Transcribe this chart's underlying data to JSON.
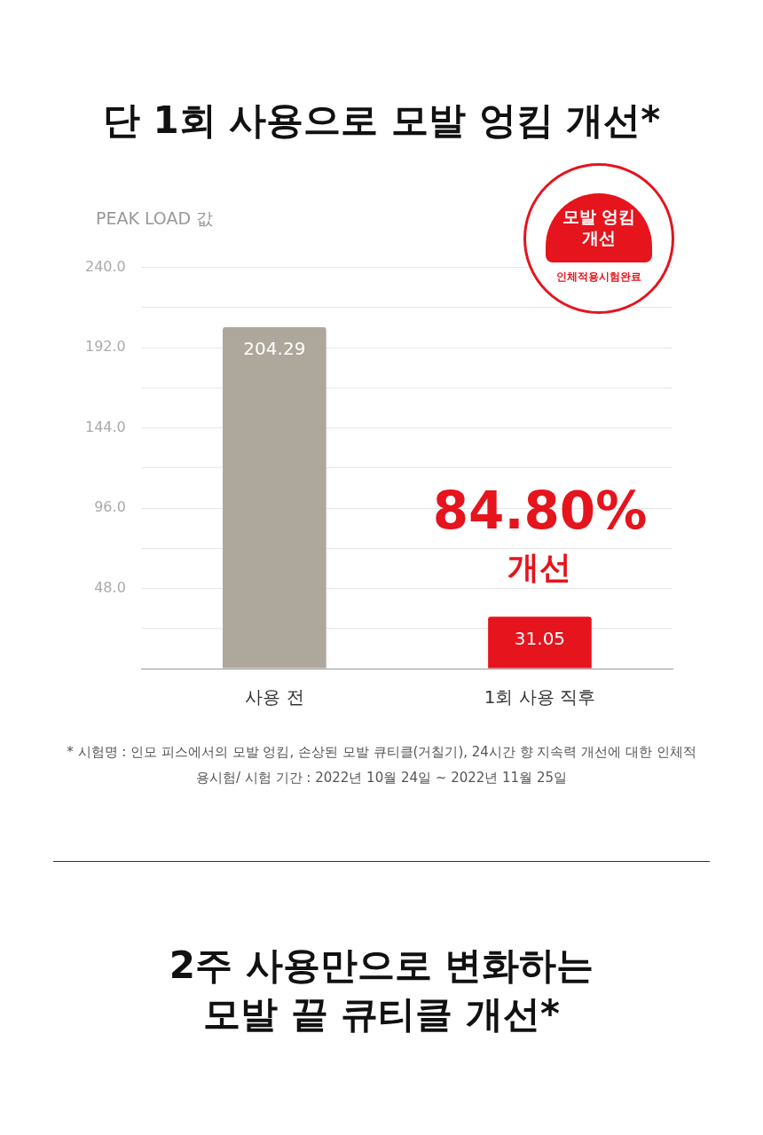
{
  "chart_data": {
    "type": "bar",
    "title": "단 1회 사용으로 모발 엉킴 개선*",
    "ylabel": "PEAK LOAD 값",
    "categories": [
      "사용 전",
      "1회 사용 직후"
    ],
    "values": [
      204.29,
      31.05
    ],
    "colors": [
      "#aea79b",
      "#e5141d"
    ],
    "ylim": [
      0,
      240
    ],
    "yticks": [
      {
        "value": 0,
        "label": null
      },
      {
        "value": 24,
        "label": null
      },
      {
        "value": 48,
        "label": "48.0"
      },
      {
        "value": 72,
        "label": null
      },
      {
        "value": 96,
        "label": "96.0"
      },
      {
        "value": 120,
        "label": null
      },
      {
        "value": 144,
        "label": "144.0"
      },
      {
        "value": 168,
        "label": null
      },
      {
        "value": 192,
        "label": "192.0"
      },
      {
        "value": 216,
        "label": null
      },
      {
        "value": 240,
        "label": "240.0"
      }
    ],
    "grid": "y",
    "data_labels": true,
    "annotations": [
      "84.80%",
      "개선",
      "모발 엉킴 개선",
      "인체적용시험완료",
      "* 시험명 : 인모 피스에서의 모발 엉킴, 손상된 모발 큐티클(거칠기), 24시간 향 지속력 개선에 대한 인체적용시험/ 시험 기간 : 2022년 10월 24일 ~ 2022년 11월 25일",
      "2주 사용만으로 변화하는 모발 끝 큐티클 개선*"
    ]
  }
}
